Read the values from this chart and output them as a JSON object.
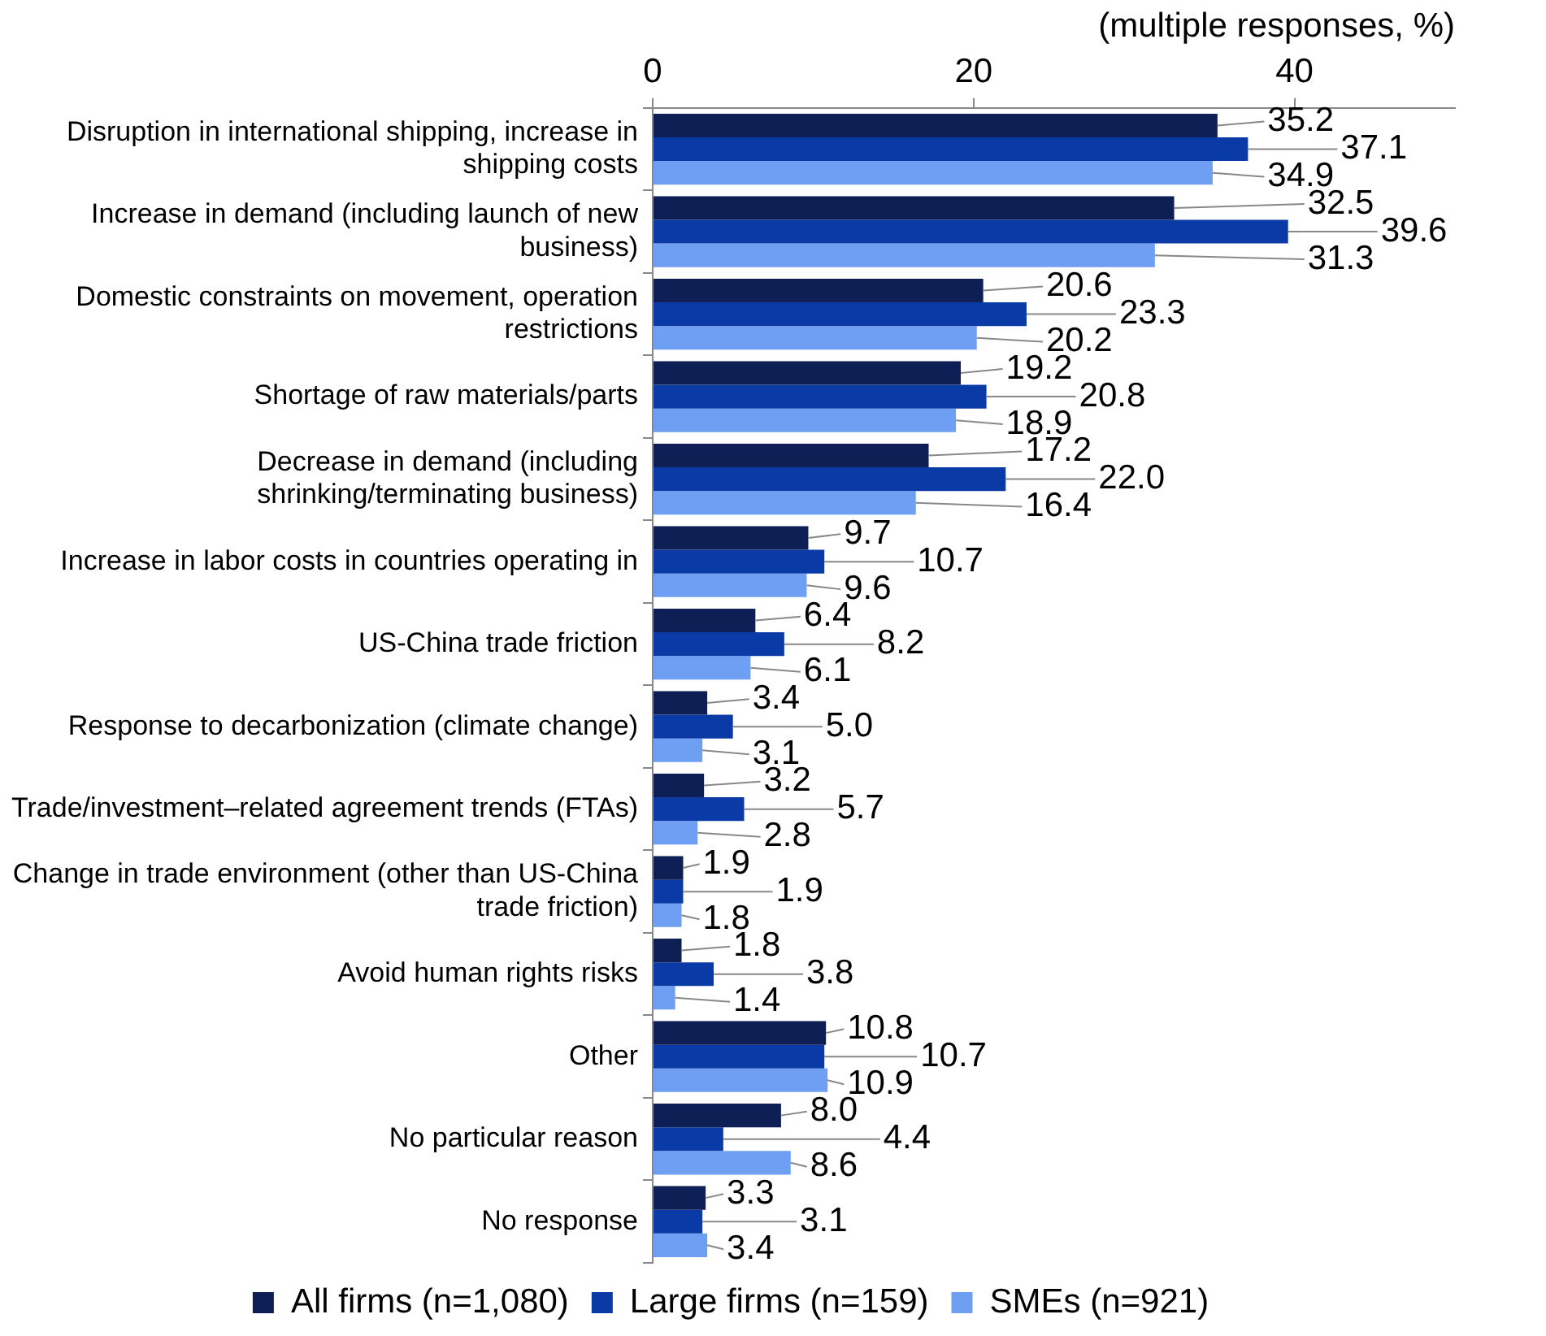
{
  "chart_data": {
    "type": "bar",
    "orientation": "horizontal",
    "xlabel": "(multiple responses, %)",
    "categories": [
      "Disruption in international shipping, increase in shipping costs",
      "Increase in demand (including launch of new business)",
      "Domestic constraints on movement, operation restrictions",
      "Shortage of raw materials/parts",
      "Decrease in demand (including shrinking/terminating business)",
      "Increase in labor costs in countries operating in",
      "US-China trade friction",
      "Response to decarbonization (climate change)",
      "Trade/investment–related agreement trends (FTAs)",
      "Change in trade environment (other than US-China trade friction)",
      "Avoid human rights risks",
      "Other",
      "No particular reason",
      "No response"
    ],
    "series": [
      {
        "name": "All firms (n=1,080)",
        "color": "#0e1f55",
        "values": [
          35.2,
          32.5,
          20.6,
          19.2,
          17.2,
          9.7,
          6.4,
          3.4,
          3.2,
          1.9,
          1.8,
          10.8,
          8.0,
          3.3
        ]
      },
      {
        "name": "Large firms (n=159)",
        "color": "#0a3aa5",
        "values": [
          37.1,
          39.6,
          23.3,
          20.8,
          22.0,
          10.7,
          8.2,
          5.0,
          5.7,
          1.9,
          3.8,
          10.7,
          4.4,
          3.1
        ]
      },
      {
        "name": "SMEs (n=921)",
        "color": "#6f9ff2",
        "values": [
          34.9,
          31.3,
          20.2,
          18.9,
          16.4,
          9.6,
          6.1,
          3.1,
          2.8,
          1.8,
          1.4,
          10.9,
          8.6,
          3.4
        ]
      }
    ],
    "value_labels": [
      [
        "35.2",
        "32.5",
        "20.6",
        "19.2",
        "17.2",
        "9.7",
        "6.4",
        "3.4",
        "3.2",
        "1.9",
        "1.8",
        "10.8",
        "8.0",
        "3.3"
      ],
      [
        "37.1",
        "39.6",
        "23.3",
        "20.8",
        "22.0",
        "10.7",
        "8.2",
        "5.0",
        "5.7",
        "1.9",
        "3.8",
        "10.7",
        "4.4",
        "3.1"
      ],
      [
        "34.9",
        "31.3",
        "20.2",
        "18.9",
        "16.4",
        "9.6",
        "6.1",
        "3.1",
        "2.8",
        "1.8",
        "1.4",
        "10.9",
        "8.6",
        "3.4"
      ]
    ],
    "xlim": [
      0,
      50
    ],
    "xticks": [
      0,
      20,
      40
    ],
    "grid": false,
    "legend": "bottom"
  }
}
